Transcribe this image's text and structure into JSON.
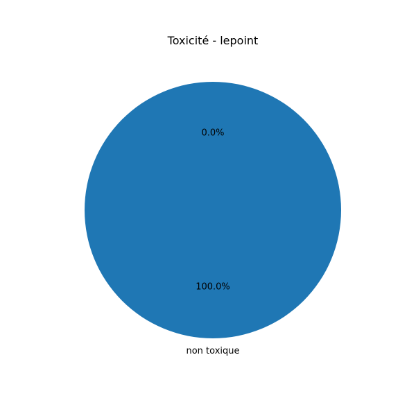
{
  "chart_data": {
    "type": "pie",
    "title": "Toxicité - lepoint",
    "categories": [
      "non toxique",
      ""
    ],
    "values": [
      100.0,
      0.0
    ],
    "percent_labels": [
      "100.0%",
      "0.0%"
    ],
    "colors": [
      "#1f77b4",
      "#ff7f0e"
    ],
    "start_angle_deg": 90,
    "direction": "counterclockwise"
  }
}
